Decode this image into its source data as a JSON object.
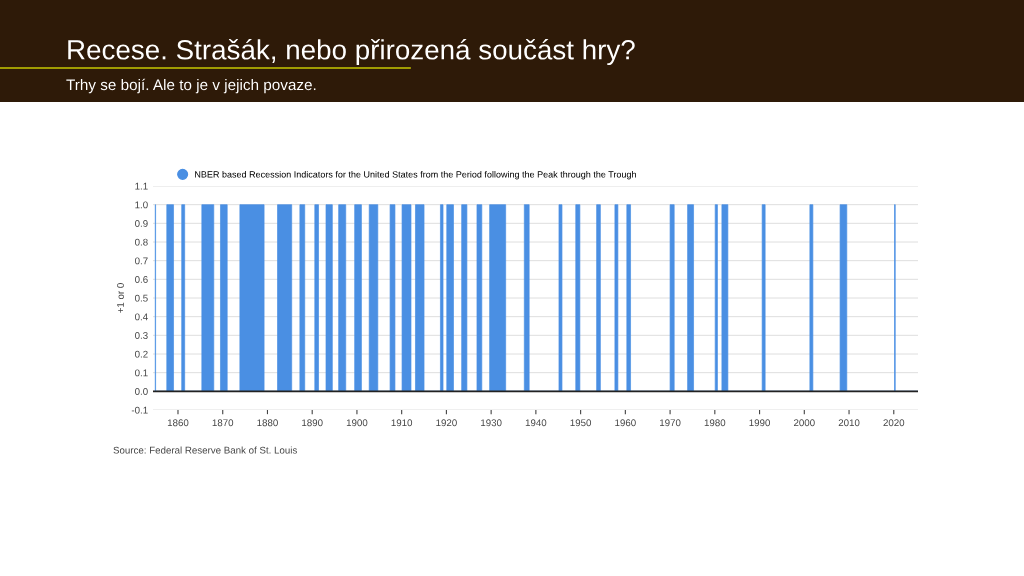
{
  "chart_data": {
    "type": "area",
    "title": "Recese. Strašák, nebo přirozená součást hry?",
    "subtitle": "Trhy se bojí. Ale to je v jejich povaze.",
    "ylabel": "+1 or 0",
    "annotations": [
      "Source: Federal Reserve Bank of St. Louis"
    ],
    "xlim": [
      "1854-06",
      "2025-06"
    ],
    "xticks": [
      "1860",
      "1870",
      "1880",
      "1890",
      "1900",
      "1910",
      "1920",
      "1930",
      "1940",
      "1950",
      "1960",
      "1970",
      "1980",
      "1990",
      "2000",
      "2010",
      "2020"
    ],
    "ylim": [
      -0.1,
      1.1
    ],
    "yticks": [
      {
        "value": -0.1,
        "label": "-0.1"
      },
      {
        "value": 0,
        "label": "0.0"
      },
      {
        "value": 0.1,
        "label": "0.1"
      },
      {
        "value": 0.2,
        "label": "0.2"
      },
      {
        "value": 0.3,
        "label": "0.3"
      },
      {
        "value": 0.4,
        "label": "0.4"
      },
      {
        "value": 0.5,
        "label": "0.5"
      },
      {
        "value": 0.6,
        "label": "0.6"
      },
      {
        "value": 0.7,
        "label": "0.7"
      },
      {
        "value": 0.8,
        "label": "0.8"
      },
      {
        "value": 0.9,
        "label": "0.9"
      },
      {
        "value": 1,
        "label": "1.0"
      },
      {
        "value": 1.1,
        "label": "1.1"
      }
    ],
    "grid": "y",
    "legend": "top left",
    "series": [
      {
        "name": "NBER based Recession Indicators for the United States from the Period following the Peak through the Trough",
        "color": "#4a8fe3",
        "x": [
          "1854-12",
          "1854-12",
          "1855-01",
          "1855-01",
          "1857-07",
          "1857-07",
          "1859-01",
          "1859-01",
          "1860-11",
          "1860-11",
          "1861-07",
          "1861-07",
          "1865-05",
          "1865-05",
          "1868-01",
          "1868-01",
          "1869-07",
          "1869-07",
          "1871-01",
          "1871-01",
          "1873-11",
          "1873-11",
          "1879-04",
          "1879-04",
          "1882-04",
          "1882-04",
          "1885-06",
          "1885-06",
          "1887-04",
          "1887-04",
          "1888-05",
          "1888-05",
          "1890-08",
          "1890-08",
          "1891-06",
          "1891-06",
          "1893-02",
          "1893-02",
          "1894-07",
          "1894-07",
          "1895-12",
          "1895-12",
          "1897-07",
          "1897-07",
          "1899-07",
          "1899-07",
          "1901-01",
          "1901-01",
          "1902-10",
          "1902-10",
          "1904-09",
          "1904-09",
          "1907-06",
          "1907-06",
          "1908-07",
          "1908-07",
          "1910-02",
          "1910-02",
          "1912-02",
          "1912-02",
          "1913-02",
          "1913-02",
          "1915-01",
          "1915-01",
          "1918-09",
          "1918-09",
          "1919-04",
          "1919-04",
          "1920-02",
          "1920-02",
          "1921-08",
          "1921-08",
          "1923-06",
          "1923-06",
          "1924-08",
          "1924-08",
          "1926-11",
          "1926-11",
          "1927-12",
          "1927-12",
          "1929-09",
          "1929-09",
          "1933-04",
          "1933-04",
          "1937-06",
          "1937-06",
          "1938-07",
          "1938-07",
          "1945-03",
          "1945-03",
          "1945-11",
          "1945-11",
          "1948-12",
          "1948-12",
          "1949-11",
          "1949-11",
          "1953-08",
          "1953-08",
          "1954-06",
          "1954-06",
          "1957-09",
          "1957-09",
          "1958-05",
          "1958-05",
          "1960-05",
          "1960-05",
          "1961-03",
          "1961-03",
          "1970-01",
          "1970-01",
          "1970-12",
          "1970-12",
          "1973-12",
          "1973-12",
          "1975-04",
          "1975-04",
          "1980-02",
          "1980-02",
          "1980-08",
          "1980-08",
          "1981-08",
          "1981-08",
          "1982-12",
          "1982-12",
          "1990-08",
          "1990-08",
          "1991-04",
          "1991-04",
          "2001-04",
          "2001-04",
          "2001-12",
          "2001-12",
          "2008-01",
          "2008-01",
          "2009-07",
          "2009-07",
          "2020-03",
          "2020-03",
          "2020-05",
          "2020-05",
          "2025-06"
        ],
        "values": [
          0,
          1,
          1,
          0,
          0,
          1,
          1,
          0,
          0,
          1,
          1,
          0,
          0,
          1,
          1,
          0,
          0,
          1,
          1,
          0,
          0,
          1,
          1,
          0,
          0,
          1,
          1,
          0,
          0,
          1,
          1,
          0,
          0,
          1,
          1,
          0,
          0,
          1,
          1,
          0,
          0,
          1,
          1,
          0,
          0,
          1,
          1,
          0,
          0,
          1,
          1,
          0,
          0,
          1,
          1,
          0,
          0,
          1,
          1,
          0,
          0,
          1,
          1,
          0,
          0,
          1,
          1,
          0,
          0,
          1,
          1,
          0,
          0,
          1,
          1,
          0,
          0,
          1,
          1,
          0,
          0,
          1,
          1,
          0,
          0,
          1,
          1,
          0,
          0,
          1,
          1,
          0,
          0,
          1,
          1,
          0,
          0,
          1,
          1,
          0,
          0,
          1,
          1,
          0,
          0,
          1,
          1,
          0,
          0,
          1,
          1,
          0,
          0,
          1,
          1,
          0,
          0,
          1,
          1,
          0,
          0,
          1,
          1,
          0,
          0,
          1,
          1,
          0,
          0,
          1,
          1,
          0,
          0,
          1,
          1,
          0,
          0,
          1,
          1,
          0,
          0
        ]
      }
    ]
  }
}
